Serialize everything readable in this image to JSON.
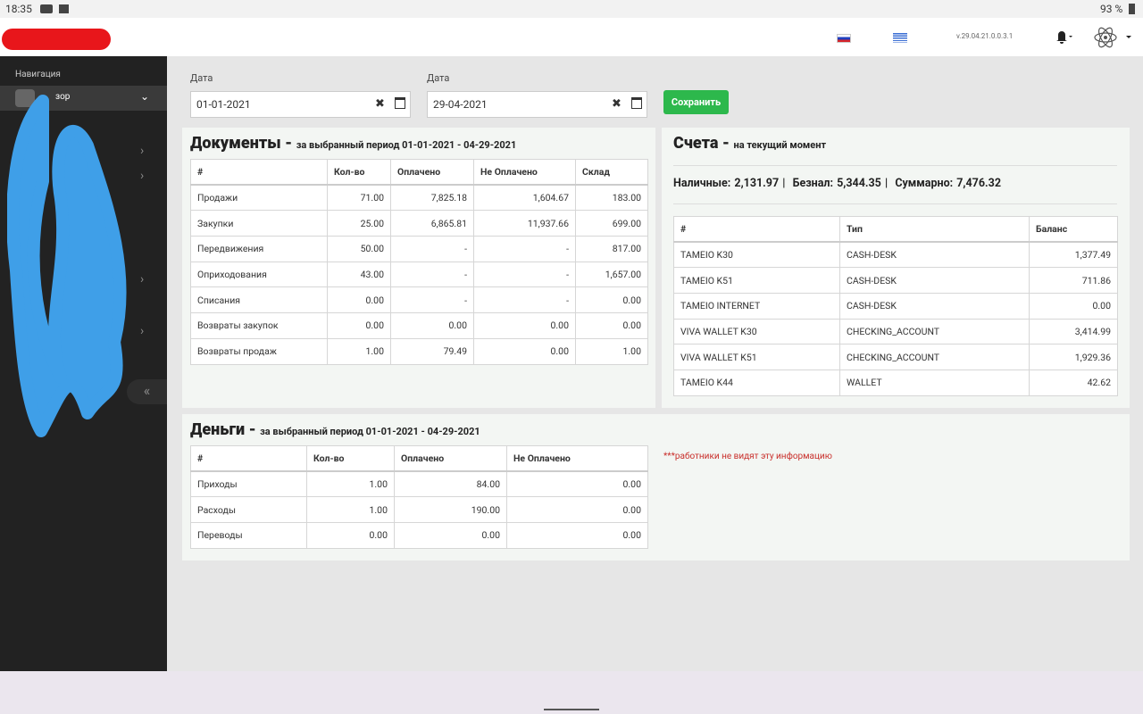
{
  "status_bar": {
    "time": "18:35",
    "battery": "93 %"
  },
  "header": {
    "version": "v.29.04.21.0.0.3.1"
  },
  "sidebar": {
    "nav_title": "Навигация",
    "active_item": "зор"
  },
  "filters": {
    "date_from_label": "Дата",
    "date_from": "01-01-2021",
    "date_to_label": "Дата",
    "date_to": "29-04-2021",
    "save_button": "Сохранить"
  },
  "documents": {
    "title": "Документы -",
    "subtitle": "за выбранный период 01-01-2021 - 04-29-2021",
    "headers": [
      "#",
      "Кол-во",
      "Оплачено",
      "Не Оплачено",
      "Склад"
    ],
    "rows": [
      [
        "Продажи",
        "71.00",
        "7,825.18",
        "1,604.67",
        "183.00"
      ],
      [
        "Закупки",
        "25.00",
        "6,865.81",
        "11,937.66",
        "699.00"
      ],
      [
        "Передвижения",
        "50.00",
        "-",
        "-",
        "817.00"
      ],
      [
        "Оприходования",
        "43.00",
        "-",
        "-",
        "1,657.00"
      ],
      [
        "Списания",
        "0.00",
        "-",
        "-",
        "0.00"
      ],
      [
        "Возвраты закупок",
        "0.00",
        "0.00",
        "0.00",
        "0.00"
      ],
      [
        "Возвраты продаж",
        "1.00",
        "79.49",
        "0.00",
        "1.00"
      ]
    ]
  },
  "accounts": {
    "title": "Счета -",
    "subtitle": "на текущий момент",
    "summary": [
      "Наличные: 2,131.97 |",
      "Безнал: 5,344.35 |",
      "Суммарно: 7,476.32"
    ],
    "headers": [
      "#",
      "Тип",
      "Баланс"
    ],
    "rows": [
      [
        "TAMEIO K30",
        "CASH-DESK",
        "1,377.49"
      ],
      [
        "TAMEIO K51",
        "CASH-DESK",
        "711.86"
      ],
      [
        "TAMEIO INTERNET",
        "CASH-DESK",
        "0.00"
      ],
      [
        "VIVA WALLET K30",
        "CHECKING_ACCOUNT",
        "3,414.99"
      ],
      [
        "VIVA WALLET K51",
        "CHECKING_ACCOUNT",
        "1,929.36"
      ],
      [
        "TAMEIO K44",
        "WALLET",
        "42.62"
      ]
    ]
  },
  "money": {
    "title": "Деньги -",
    "subtitle": "за выбранный период 01-01-2021 - 04-29-2021",
    "headers": [
      "#",
      "Кол-во",
      "Оплачено",
      "Не Оплачено"
    ],
    "rows": [
      [
        "Приходы",
        "1.00",
        "84.00",
        "0.00"
      ],
      [
        "Расходы",
        "1.00",
        "190.00",
        "0.00"
      ],
      [
        "Переводы",
        "0.00",
        "0.00",
        "0.00"
      ]
    ],
    "note": "***работники не видят эту информацию"
  }
}
